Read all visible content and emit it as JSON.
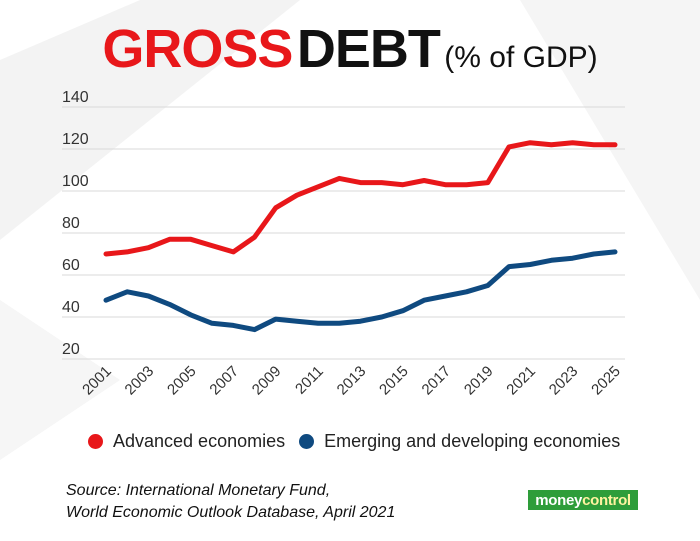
{
  "header": {
    "title_part1": "GROSS",
    "title_part2": "DEBT",
    "title_part3": "(% of GDP)"
  },
  "legend": {
    "advanced": "Advanced economies",
    "emerging": "Emerging and developing economies"
  },
  "source": {
    "line1": "Source: International Monetary Fund,",
    "line2": "World Economic Outlook Database, April 2021"
  },
  "logo": {
    "part1": "money",
    "part2": "control"
  },
  "colors": {
    "advanced": "#e8171a",
    "emerging": "#0f4a80",
    "grid": "#d9d9d9"
  },
  "chart_data": {
    "type": "line",
    "title": "GROSS DEBT (% of GDP)",
    "xlabel": "",
    "ylabel": "",
    "ylim": [
      20,
      140
    ],
    "yticks": [
      20,
      40,
      60,
      80,
      100,
      120,
      140
    ],
    "x": [
      2001,
      2002,
      2003,
      2004,
      2005,
      2006,
      2007,
      2008,
      2009,
      2010,
      2011,
      2012,
      2013,
      2014,
      2015,
      2016,
      2017,
      2018,
      2019,
      2020,
      2021,
      2022,
      2023,
      2024,
      2025
    ],
    "xtick_labels": [
      "2001",
      "2003",
      "2005",
      "2007",
      "2009",
      "2011",
      "2013",
      "2015",
      "2017",
      "2019",
      "2021",
      "2023",
      "2025"
    ],
    "series": [
      {
        "name": "Advanced economies",
        "values": [
          70,
          71,
          73,
          77,
          77,
          74,
          71,
          78,
          92,
          98,
          102,
          106,
          104,
          104,
          103,
          105,
          103,
          103,
          104,
          121,
          123,
          122,
          123,
          122,
          122
        ]
      },
      {
        "name": "Emerging and developing economies",
        "values": [
          48,
          52,
          50,
          46,
          41,
          37,
          36,
          34,
          39,
          38,
          37,
          37,
          38,
          40,
          43,
          48,
          50,
          52,
          55,
          64,
          65,
          67,
          68,
          70,
          71
        ]
      }
    ],
    "grid": true,
    "legend_position": "bottom"
  }
}
